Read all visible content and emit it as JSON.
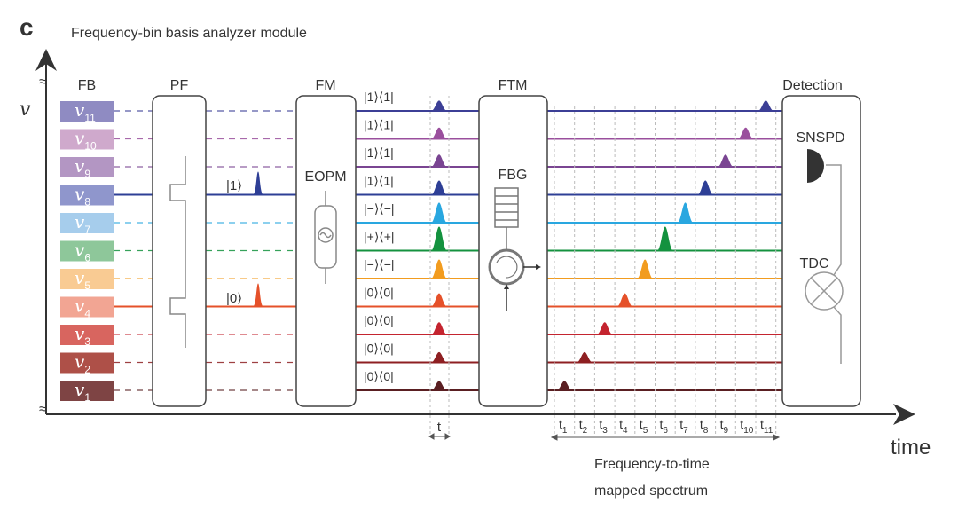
{
  "panel_letter": "c",
  "title": "Frequency-bin basis analyzer module",
  "axis": {
    "y_label": "v",
    "x_label": "time"
  },
  "blocks": {
    "fb": "FB",
    "pf": "PF",
    "fm": "FM",
    "eopm": "EOPM",
    "ftm": "FTM",
    "fbg": "FBG",
    "detection": "Detection",
    "snspd": "SNSPD",
    "tdc": "TDC"
  },
  "inputs": {
    "one": "|1⟩",
    "zero": "|0⟩"
  },
  "rows": [
    {
      "sub": "11",
      "box": "#8f8bc2",
      "line": "#3c3f96",
      "state": "|1⟩⟨1|",
      "input": "dashed",
      "pulse": 0.3
    },
    {
      "sub": "10",
      "box": "#cfa9cc",
      "line": "#9a4f9d",
      "state": "|1⟩⟨1|",
      "input": "dashed",
      "pulse": 0.35
    },
    {
      "sub": "9",
      "box": "#b396c3",
      "line": "#7a4592",
      "state": "|1⟩⟨1|",
      "input": "dashed",
      "pulse": 0.4
    },
    {
      "sub": "8",
      "box": "#8f96cc",
      "line": "#2e3f96",
      "state": "|1⟩⟨1|",
      "input": "solid",
      "pulse": 0.5
    },
    {
      "sub": "7",
      "box": "#a6cdec",
      "line": "#29a7e0",
      "state": "|−⟩⟨−|",
      "input": "dashed",
      "pulse": 0.8
    },
    {
      "sub": "6",
      "box": "#8ec79a",
      "line": "#14923f",
      "state": "|+⟩⟨+|",
      "input": "dashed",
      "pulse": 1.0
    },
    {
      "sub": "5",
      "box": "#f9cb93",
      "line": "#f29c1f",
      "state": "|−⟩⟨−|",
      "input": "dashed",
      "pulse": 0.75
    },
    {
      "sub": "4",
      "box": "#f2a593",
      "line": "#e5512a",
      "state": "|0⟩⟨0|",
      "input": "solid",
      "pulse": 0.45
    },
    {
      "sub": "3",
      "box": "#d8655f",
      "line": "#c4242f",
      "state": "|0⟩⟨0|",
      "input": "dashed",
      "pulse": 0.4
    },
    {
      "sub": "2",
      "box": "#ae5048",
      "line": "#8e1f22",
      "state": "|0⟩⟨0|",
      "input": "dashed",
      "pulse": 0.3
    },
    {
      "sub": "1",
      "box": "#7e4444",
      "line": "#5a1f22",
      "state": "|0⟩⟨0|",
      "input": "dashed",
      "pulse": 0.25
    }
  ],
  "time_bins": [
    "1",
    "2",
    "3",
    "4",
    "5",
    "6",
    "7",
    "8",
    "9",
    "10",
    "11"
  ],
  "pulse_width_label": "t",
  "spectrum_caption": [
    "Frequency-to-time",
    "mapped spectrum"
  ],
  "colors": {
    "axis": "#333333",
    "box_stroke": "#444444",
    "component": "#999999"
  }
}
